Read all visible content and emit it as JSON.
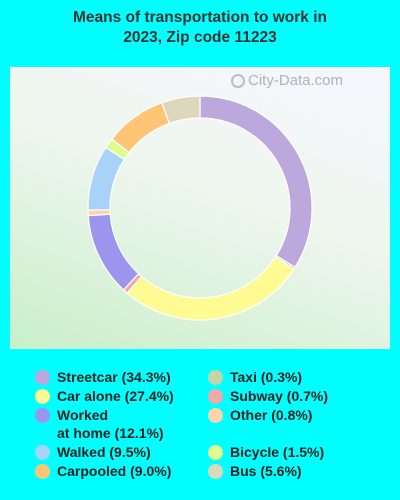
{
  "title_line1": "Means of transportation to work in",
  "title_line2": "2023, Zip code 11223",
  "watermark": "City-Data.com",
  "chart_data": {
    "type": "pie",
    "donut": true,
    "title": "Means of transportation to work in 2023, Zip code 11223",
    "legend_placement": "bottom",
    "slices": [
      {
        "label": "Streetcar",
        "value": 34.3,
        "display": "Streetcar (34.3%)",
        "color": "#bca8dc"
      },
      {
        "label": "Taxi",
        "value": 0.3,
        "display": "Taxi (0.3%)",
        "color": "#c4d6a8"
      },
      {
        "label": "Car alone",
        "value": 27.4,
        "display": "Car alone (27.4%)",
        "color": "#fdfb92"
      },
      {
        "label": "Subway",
        "value": 0.7,
        "display": "Subway (0.7%)",
        "color": "#f0aaaa"
      },
      {
        "label": "Worked at home",
        "value": 12.1,
        "display_line1": "Worked",
        "display_line2": "at home (12.1%)",
        "color": "#9c95ee"
      },
      {
        "label": "Other",
        "value": 0.8,
        "display": "Other (0.8%)",
        "color": "#fed3ab"
      },
      {
        "label": "Walked",
        "value": 9.5,
        "display": "Walked (9.5%)",
        "color": "#a9d2f8"
      },
      {
        "label": "Bicycle",
        "value": 1.5,
        "display": "Bicycle (1.5%)",
        "color": "#dffb8e"
      },
      {
        "label": "Carpooled",
        "value": 9.0,
        "display": "Carpooled (9.0%)",
        "color": "#fec577"
      },
      {
        "label": "Bus",
        "value": 5.6,
        "display": "Bus (5.6%)",
        "color": "#dcd8bc"
      }
    ]
  }
}
